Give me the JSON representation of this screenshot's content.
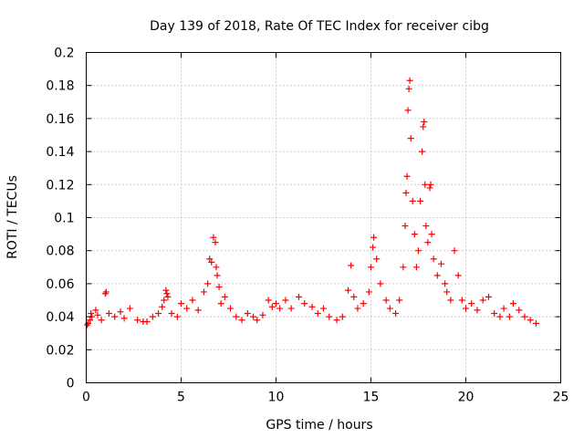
{
  "chart_data": {
    "type": "scatter",
    "title": "Day 139 of 2018, Rate Of TEC Index for receiver cibg",
    "xlabel": "GPS time / hours",
    "ylabel": "ROTI / TECUs",
    "xlim": [
      0,
      25
    ],
    "ylim": [
      0,
      0.2
    ],
    "xticks": [
      0,
      5,
      10,
      15,
      20,
      25
    ],
    "xtick_labels": [
      "0",
      "5",
      "10",
      "15",
      "20",
      "25"
    ],
    "yticks": [
      0,
      0.02,
      0.04,
      0.06,
      0.08,
      0.1,
      0.12,
      0.14,
      0.16,
      0.18,
      0.2
    ],
    "ytick_labels": [
      "0",
      "0.02",
      "0.04",
      "0.06",
      "0.08",
      "0.1",
      "0.12",
      "0.14",
      "0.16",
      "0.18",
      "0.2"
    ],
    "grid": true,
    "marker": "+",
    "series": [
      {
        "name": "ROTI",
        "color": "#ff0000",
        "points": [
          [
            0.05,
            0.035
          ],
          [
            0.1,
            0.036
          ],
          [
            0.2,
            0.038
          ],
          [
            0.25,
            0.042
          ],
          [
            0.3,
            0.04
          ],
          [
            0.5,
            0.044
          ],
          [
            0.6,
            0.041
          ],
          [
            0.8,
            0.038
          ],
          [
            1.0,
            0.054
          ],
          [
            1.05,
            0.055
          ],
          [
            1.2,
            0.042
          ],
          [
            1.5,
            0.04
          ],
          [
            1.8,
            0.043
          ],
          [
            2.0,
            0.039
          ],
          [
            2.3,
            0.045
          ],
          [
            2.7,
            0.038
          ],
          [
            3.0,
            0.037
          ],
          [
            3.2,
            0.037
          ],
          [
            3.5,
            0.04
          ],
          [
            3.8,
            0.042
          ],
          [
            4.0,
            0.046
          ],
          [
            4.1,
            0.05
          ],
          [
            4.2,
            0.056
          ],
          [
            4.25,
            0.054
          ],
          [
            4.3,
            0.052
          ],
          [
            4.5,
            0.042
          ],
          [
            4.8,
            0.04
          ],
          [
            5.0,
            0.048
          ],
          [
            5.3,
            0.045
          ],
          [
            5.6,
            0.05
          ],
          [
            5.9,
            0.044
          ],
          [
            6.2,
            0.055
          ],
          [
            6.4,
            0.06
          ],
          [
            6.5,
            0.075
          ],
          [
            6.6,
            0.073
          ],
          [
            6.7,
            0.088
          ],
          [
            6.8,
            0.085
          ],
          [
            6.85,
            0.07
          ],
          [
            6.9,
            0.065
          ],
          [
            7.0,
            0.058
          ],
          [
            7.1,
            0.048
          ],
          [
            7.3,
            0.052
          ],
          [
            7.6,
            0.045
          ],
          [
            7.9,
            0.04
          ],
          [
            8.2,
            0.038
          ],
          [
            8.5,
            0.042
          ],
          [
            8.8,
            0.04
          ],
          [
            9.0,
            0.038
          ],
          [
            9.3,
            0.041
          ],
          [
            9.6,
            0.05
          ],
          [
            9.8,
            0.046
          ],
          [
            10.0,
            0.048
          ],
          [
            10.2,
            0.045
          ],
          [
            10.5,
            0.05
          ],
          [
            10.8,
            0.045
          ],
          [
            11.2,
            0.052
          ],
          [
            11.5,
            0.048
          ],
          [
            11.9,
            0.046
          ],
          [
            12.2,
            0.042
          ],
          [
            12.5,
            0.045
          ],
          [
            12.8,
            0.04
          ],
          [
            13.2,
            0.038
          ],
          [
            13.5,
            0.04
          ],
          [
            13.8,
            0.056
          ],
          [
            13.95,
            0.071
          ],
          [
            14.1,
            0.052
          ],
          [
            14.3,
            0.045
          ],
          [
            14.6,
            0.048
          ],
          [
            14.9,
            0.055
          ],
          [
            15.0,
            0.07
          ],
          [
            15.1,
            0.082
          ],
          [
            15.15,
            0.088
          ],
          [
            15.3,
            0.075
          ],
          [
            15.5,
            0.06
          ],
          [
            15.8,
            0.05
          ],
          [
            16.0,
            0.045
          ],
          [
            16.3,
            0.042
          ],
          [
            16.5,
            0.05
          ],
          [
            16.7,
            0.07
          ],
          [
            16.8,
            0.095
          ],
          [
            16.85,
            0.115
          ],
          [
            16.9,
            0.125
          ],
          [
            16.95,
            0.165
          ],
          [
            17.0,
            0.178
          ],
          [
            17.05,
            0.183
          ],
          [
            17.1,
            0.148
          ],
          [
            17.2,
            0.11
          ],
          [
            17.3,
            0.09
          ],
          [
            17.4,
            0.07
          ],
          [
            17.5,
            0.08
          ],
          [
            17.6,
            0.11
          ],
          [
            17.7,
            0.14
          ],
          [
            17.75,
            0.155
          ],
          [
            17.8,
            0.158
          ],
          [
            17.85,
            0.12
          ],
          [
            17.9,
            0.095
          ],
          [
            18.0,
            0.085
          ],
          [
            18.1,
            0.118
          ],
          [
            18.15,
            0.12
          ],
          [
            18.2,
            0.09
          ],
          [
            18.3,
            0.075
          ],
          [
            18.5,
            0.065
          ],
          [
            18.7,
            0.072
          ],
          [
            18.9,
            0.06
          ],
          [
            19.0,
            0.055
          ],
          [
            19.2,
            0.05
          ],
          [
            19.4,
            0.08
          ],
          [
            19.6,
            0.065
          ],
          [
            19.8,
            0.05
          ],
          [
            20.0,
            0.045
          ],
          [
            20.3,
            0.048
          ],
          [
            20.6,
            0.044
          ],
          [
            20.9,
            0.05
          ],
          [
            21.2,
            0.052
          ],
          [
            21.5,
            0.042
          ],
          [
            21.8,
            0.04
          ],
          [
            22.0,
            0.045
          ],
          [
            22.3,
            0.04
          ],
          [
            22.5,
            0.048
          ],
          [
            22.8,
            0.044
          ],
          [
            23.1,
            0.04
          ],
          [
            23.4,
            0.038
          ],
          [
            23.7,
            0.036
          ]
        ]
      }
    ]
  }
}
